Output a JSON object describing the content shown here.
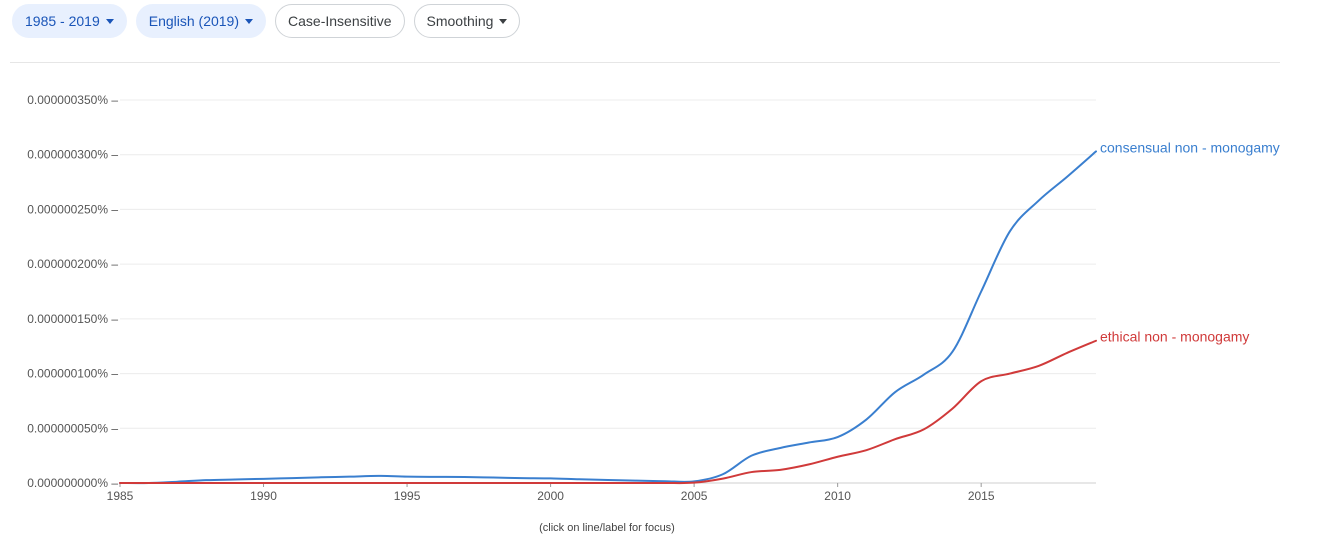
{
  "toolbar": {
    "year_range": "1985 - 2019",
    "corpus": "English (2019)",
    "case": "Case-Insensitive",
    "smoothing": "Smoothing"
  },
  "hint": "(click on line/label for focus)",
  "colors": {
    "series_blue": "#3a7fcf",
    "series_red": "#d03a3a",
    "grid": "#ececec",
    "axis": "#cfcfcf"
  },
  "icons": {
    "dropdown": "caret-down-icon"
  },
  "chart_data": {
    "type": "line",
    "x_range": [
      1985,
      2019
    ],
    "ylim": [
      0,
      3.5e-07
    ],
    "x_ticks": [
      1985,
      1990,
      1995,
      2000,
      2005,
      2010,
      2015
    ],
    "y_ticks": [
      {
        "value": 0,
        "label": "0.000000000% –"
      },
      {
        "value": 5e-08,
        "label": "0.000000050% –"
      },
      {
        "value": 1e-07,
        "label": "0.000000100% –"
      },
      {
        "value": 1.5e-07,
        "label": "0.000000150% –"
      },
      {
        "value": 2e-07,
        "label": "0.000000200% –"
      },
      {
        "value": 2.5e-07,
        "label": "0.000000250% –"
      },
      {
        "value": 3e-07,
        "label": "0.000000300% –"
      },
      {
        "value": 3.5e-07,
        "label": "0.000000350% –"
      }
    ],
    "x": [
      1985,
      1986,
      1987,
      1988,
      1989,
      1990,
      1991,
      1992,
      1993,
      1994,
      1995,
      1996,
      1997,
      1998,
      1999,
      2000,
      2001,
      2002,
      2003,
      2004,
      2005,
      2006,
      2007,
      2008,
      2009,
      2010,
      2011,
      2012,
      2013,
      2014,
      2015,
      2016,
      2017,
      2018,
      2019
    ],
    "series": [
      {
        "name": "consensual non - monogamy",
        "color": "#3a7fcf",
        "values": [
          0.0,
          0.0,
          1.2e-09,
          2.6e-09,
          3.2e-09,
          3.8e-09,
          4.5e-09,
          5.2e-09,
          5.8e-09,
          6.5e-09,
          5.8e-09,
          5.6e-09,
          5.5e-09,
          5e-09,
          4.5e-09,
          4.2e-09,
          3.4e-09,
          2.8e-09,
          2.2e-09,
          1.6e-09,
          1.5e-09,
          8e-09,
          2.5e-08,
          3.2e-08,
          3.7e-08,
          4.2e-08,
          5.8e-08,
          8.3e-08,
          9.9e-08,
          1.2e-07,
          1.75e-07,
          2.3e-07,
          2.58e-07,
          2.8e-07,
          3.03e-07
        ]
      },
      {
        "name": "ethical non - monogamy",
        "color": "#d03a3a",
        "values": [
          0.0,
          0.0,
          0.0,
          0.0,
          0.0,
          0.0,
          0.0,
          0.0,
          0.0,
          0.0,
          0.0,
          0.0,
          0.0,
          0.0,
          0.0,
          0.0,
          0.0,
          0.0,
          0.0,
          0.0,
          3e-10,
          4e-09,
          1e-08,
          1.2e-08,
          1.7e-08,
          2.4e-08,
          3e-08,
          4e-08,
          4.9e-08,
          6.8e-08,
          9.3e-08,
          1e-07,
          1.07e-07,
          1.19e-07,
          1.3e-07
        ]
      }
    ]
  }
}
